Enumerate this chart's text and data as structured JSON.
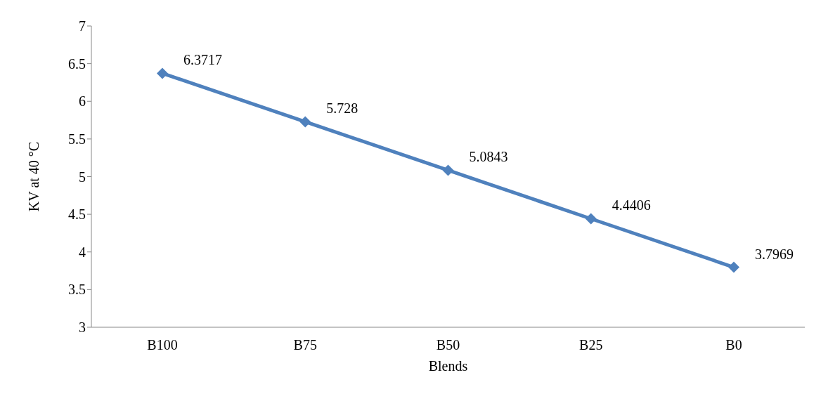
{
  "chart_data": {
    "type": "line",
    "xlabel": "Blends",
    "ylabel": "KV at 40 °C",
    "categories": [
      "B100",
      "B75",
      "B50",
      "B25",
      "B0"
    ],
    "series": [
      {
        "color": "#4f81bd",
        "values": [
          6.3717,
          5.728,
          5.0843,
          4.4406,
          3.7969
        ]
      }
    ],
    "ylim": [
      3,
      7
    ],
    "yticks": [
      3,
      3.5,
      4,
      4.5,
      5,
      5.5,
      6,
      6.5,
      7
    ],
    "data_labels": true,
    "marker": "diamond",
    "grid": false,
    "legend": false
  }
}
